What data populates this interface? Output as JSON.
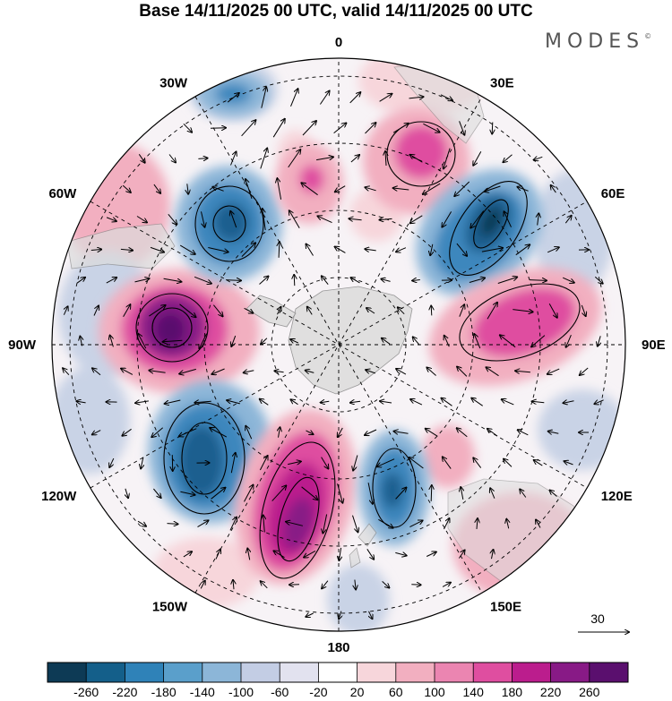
{
  "title": "Base 14/11/2025 00 UTC, valid 14/11/2025 00 UTC",
  "brand": "MODES",
  "brand_mark": "©",
  "lon_labels": [
    {
      "label": "0",
      "lon": 0
    },
    {
      "label": "30E",
      "lon": 30
    },
    {
      "label": "60E",
      "lon": 60
    },
    {
      "label": "90E",
      "lon": 90
    },
    {
      "label": "120E",
      "lon": 120
    },
    {
      "label": "150E",
      "lon": 150
    },
    {
      "label": "180",
      "lon": 180
    },
    {
      "label": "150W",
      "lon": -150
    },
    {
      "label": "120W",
      "lon": -120
    },
    {
      "label": "90W",
      "lon": -90
    },
    {
      "label": "60W",
      "lon": -60
    },
    {
      "label": "30W",
      "lon": -30
    }
  ],
  "vector_reference": {
    "value": "30"
  },
  "colorbar": {
    "ticks": [
      "-260",
      "-220",
      "-180",
      "-140",
      "-100",
      "-60",
      "-20",
      "20",
      "60",
      "100",
      "140",
      "180",
      "220",
      "260"
    ],
    "colors": [
      "#0d3a55",
      "#145f8a",
      "#2f82b8",
      "#5a9fcb",
      "#8cb6d8",
      "#c3cde4",
      "#e2e2ef",
      "#ffffff",
      "#f7d6db",
      "#f2afc0",
      "#eb85b1",
      "#df4ea0",
      "#bb1d8d",
      "#881a86",
      "#5a0f6e"
    ]
  },
  "anomaly_colors": {
    "neg_strong": "#1e5f8f",
    "neg_mid": "#3d87bd",
    "neg_weak": "#8cb6d8",
    "neg_faint": "#c9d3e6",
    "pos_faint": "#f7d6db",
    "pos_weak": "#f2afc0",
    "pos_mid": "#df4ea0",
    "pos_strong": "#881a86",
    "land": "#dcdcdc"
  }
}
